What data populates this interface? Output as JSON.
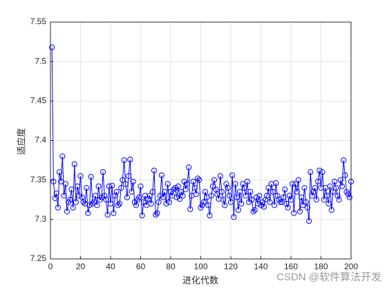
{
  "chart_data": {
    "type": "line",
    "xlabel": "进化代数",
    "ylabel": "适应度",
    "watermark": "CSDN @软件算法开发",
    "xlim": [
      0,
      200
    ],
    "xticks": [
      0,
      20,
      40,
      60,
      80,
      100,
      120,
      140,
      160,
      180,
      200
    ],
    "ylim": [
      7.25,
      7.55
    ],
    "yticks": [
      7.25,
      7.3,
      7.35,
      7.4,
      7.45,
      7.5,
      7.55
    ],
    "grid": true,
    "x": [
      1,
      2,
      3,
      4,
      5,
      6,
      7,
      8,
      9,
      10,
      11,
      12,
      13,
      14,
      15,
      16,
      17,
      18,
      19,
      20,
      21,
      22,
      23,
      24,
      25,
      26,
      27,
      28,
      29,
      30,
      31,
      32,
      33,
      34,
      35,
      36,
      37,
      38,
      39,
      40,
      41,
      42,
      43,
      44,
      45,
      46,
      47,
      48,
      49,
      50,
      51,
      52,
      53,
      54,
      55,
      56,
      57,
      58,
      59,
      60,
      61,
      62,
      63,
      64,
      65,
      66,
      67,
      68,
      69,
      70,
      71,
      72,
      73,
      74,
      75,
      76,
      77,
      78,
      79,
      80,
      81,
      82,
      83,
      84,
      85,
      86,
      87,
      88,
      89,
      90,
      91,
      92,
      93,
      94,
      95,
      96,
      97,
      98,
      99,
      100,
      101,
      102,
      103,
      104,
      105,
      106,
      107,
      108,
      109,
      110,
      111,
      112,
      113,
      114,
      115,
      116,
      117,
      118,
      119,
      120,
      121,
      122,
      123,
      124,
      125,
      126,
      127,
      128,
      129,
      130,
      131,
      132,
      133,
      134,
      135,
      136,
      137,
      138,
      139,
      140,
      141,
      142,
      143,
      144,
      145,
      146,
      147,
      148,
      149,
      150,
      151,
      152,
      153,
      154,
      155,
      156,
      157,
      158,
      159,
      160,
      161,
      162,
      163,
      164,
      165,
      166,
      167,
      168,
      169,
      170,
      171,
      172,
      173,
      174,
      175,
      176,
      177,
      178,
      179,
      180,
      181,
      182,
      183,
      184,
      185,
      186,
      187,
      188,
      189,
      190,
      191,
      192,
      193,
      194,
      195,
      196,
      197,
      198,
      199,
      200
    ],
    "series": [
      {
        "color": "#0000ff",
        "values": [
          7.518,
          7.348,
          7.327,
          7.333,
          7.315,
          7.36,
          7.348,
          7.38,
          7.33,
          7.345,
          7.31,
          7.322,
          7.325,
          7.338,
          7.315,
          7.37,
          7.322,
          7.342,
          7.33,
          7.355,
          7.328,
          7.322,
          7.32,
          7.34,
          7.308,
          7.318,
          7.354,
          7.32,
          7.322,
          7.33,
          7.318,
          7.342,
          7.325,
          7.328,
          7.36,
          7.33,
          7.325,
          7.306,
          7.342,
          7.32,
          7.343,
          7.308,
          7.33,
          7.335,
          7.318,
          7.32,
          7.34,
          7.35,
          7.375,
          7.345,
          7.328,
          7.355,
          7.376,
          7.335,
          7.348,
          7.322,
          7.318,
          7.325,
          7.328,
          7.342,
          7.305,
          7.322,
          7.33,
          7.318,
          7.326,
          7.33,
          7.32,
          7.335,
          7.362,
          7.306,
          7.308,
          7.322,
          7.33,
          7.356,
          7.328,
          7.335,
          7.32,
          7.345,
          7.322,
          7.335,
          7.33,
          7.338,
          7.34,
          7.328,
          7.342,
          7.326,
          7.335,
          7.33,
          7.348,
          7.338,
          7.345,
          7.366,
          7.313,
          7.33,
          7.348,
          7.34,
          7.332,
          7.352,
          7.35,
          7.315,
          7.318,
          7.322,
          7.335,
          7.328,
          7.318,
          7.305,
          7.33,
          7.342,
          7.35,
          7.338,
          7.332,
          7.326,
          7.355,
          7.335,
          7.325,
          7.318,
          7.345,
          7.34,
          7.33,
          7.322,
          7.356,
          7.303,
          7.345,
          7.328,
          7.312,
          7.335,
          7.32,
          7.345,
          7.34,
          7.33,
          7.348,
          7.322,
          7.335,
          7.325,
          7.31,
          7.312,
          7.328,
          7.32,
          7.33,
          7.318,
          7.322,
          7.316,
          7.325,
          7.33,
          7.34,
          7.322,
          7.345,
          7.335,
          7.318,
          7.346,
          7.33,
          7.325,
          7.322,
          7.322,
          7.328,
          7.338,
          7.32,
          7.315,
          7.33,
          7.325,
          7.345,
          7.308,
          7.345,
          7.335,
          7.35,
          7.31,
          7.328,
          7.318,
          7.34,
          7.322,
          7.315,
          7.298,
          7.36,
          7.33,
          7.335,
          7.34,
          7.325,
          7.348,
          7.362,
          7.34,
          7.36,
          7.325,
          7.34,
          7.33,
          7.32,
          7.342,
          7.312,
          7.335,
          7.348,
          7.34,
          7.33,
          7.325,
          7.35,
          7.342,
          7.375,
          7.356,
          7.335,
          7.332,
          7.328,
          7.348
        ]
      }
    ]
  }
}
